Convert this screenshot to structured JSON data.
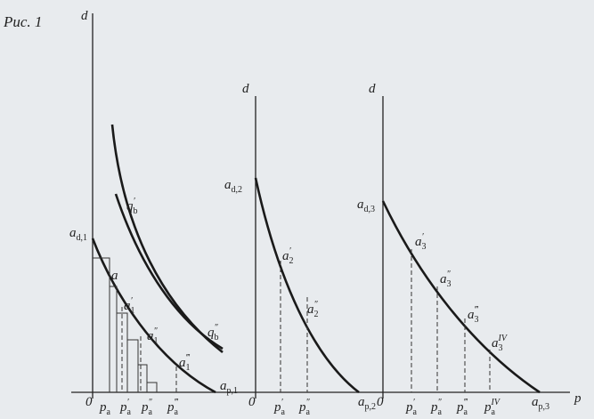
{
  "title": "Рис. 1",
  "axis_p": "p",
  "panels": [
    {
      "axis_label": "d",
      "origin": "0",
      "labels": [
        {
          "main": "a",
          "sub": "d,1"
        },
        {
          "main": "q",
          "sup": "′",
          "sub": "b"
        },
        {
          "main": "q",
          "sup": "″",
          "sub": "b"
        },
        {
          "main": "a"
        },
        {
          "main": "a",
          "sup": "′",
          "sub": "1"
        },
        {
          "main": "a",
          "sup": "″",
          "sub": "1"
        },
        {
          "main": "a",
          "sup": "‴",
          "sub": "1"
        },
        {
          "main": "a",
          "sub": "p,1"
        },
        {
          "main": "p",
          "sub": "a"
        },
        {
          "main": "p",
          "sup": "′",
          "sub": "a"
        },
        {
          "main": "p",
          "sup": "″",
          "sub": "a"
        },
        {
          "main": "p",
          "sup": "‴",
          "sub": "a"
        }
      ]
    },
    {
      "axis_label": "d",
      "origin": "0",
      "labels": [
        {
          "main": "a",
          "sub": "d,2"
        },
        {
          "main": "a",
          "sup": "′",
          "sub": "2"
        },
        {
          "main": "a",
          "sup": "″",
          "sub": "2"
        },
        {
          "main": "p",
          "sup": "′",
          "sub": "a"
        },
        {
          "main": "p",
          "sup": "″",
          "sub": "a"
        },
        {
          "main": "a",
          "sub": "p,2"
        }
      ]
    },
    {
      "axis_label": "d",
      "origin": "0",
      "labels": [
        {
          "main": "a",
          "sub": "d,3"
        },
        {
          "main": "a",
          "sup": "′",
          "sub": "3"
        },
        {
          "main": "a",
          "sup": "″",
          "sub": "3"
        },
        {
          "main": "a",
          "sup": "‴",
          "sub": "3"
        },
        {
          "main": "a",
          "sup": "IV",
          "sub": "3"
        },
        {
          "main": "p",
          "sup": "′",
          "sub": "a"
        },
        {
          "main": "p",
          "sup": "″",
          "sub": "a"
        },
        {
          "main": "p",
          "sup": "‴",
          "sub": "a"
        },
        {
          "main": "p",
          "sup": "IV",
          "sub": "a"
        },
        {
          "main": "a",
          "sub": "p,3"
        }
      ]
    }
  ]
}
